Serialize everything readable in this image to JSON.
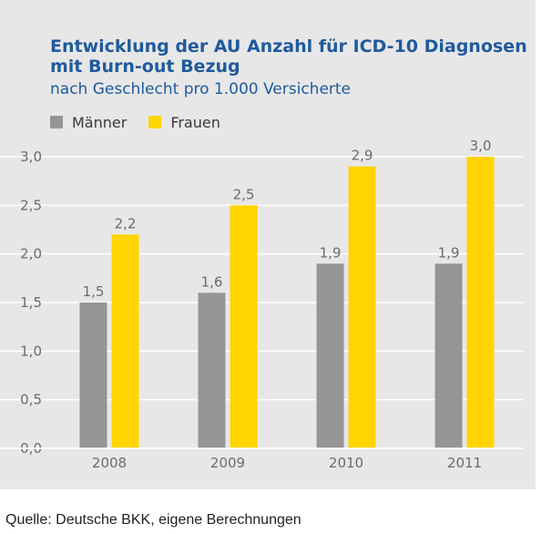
{
  "source": "Quelle: Deutsche BKK, eigene Berechnungen",
  "colors": {
    "panel": "#e7e7e7",
    "title": "#1f5a9e",
    "maenner": "#959595",
    "frauen": "#ffd400",
    "grid": "#ffffff",
    "text": "#6b6b6b"
  },
  "chart_data": {
    "type": "bar",
    "title": "Entwicklung der AU Anzahl für ICD-10 Diagnosen mit Burn-out Bezug",
    "title_lines": [
      "Entwicklung der AU Anzahl für ICD-10 Diagnosen",
      "mit Burn-out Bezug"
    ],
    "subtitle": "nach Geschlecht pro 1.000 Versicherte",
    "xlabel": "",
    "ylabel": "",
    "categories": [
      "2008",
      "2009",
      "2010",
      "2011"
    ],
    "series": [
      {
        "name": "Männer",
        "values": [
          1.5,
          1.6,
          1.9,
          1.9
        ],
        "labels": [
          "1,5",
          "1,6",
          "1,9",
          "1,9"
        ],
        "color": "#959595"
      },
      {
        "name": "Frauen",
        "values": [
          2.2,
          2.5,
          2.9,
          3.0
        ],
        "labels": [
          "2,2",
          "2,5",
          "2,9",
          "3,0"
        ],
        "color": "#ffd400"
      }
    ],
    "ylim": [
      0,
      3.0
    ],
    "yticks": [
      0,
      0.5,
      1.0,
      1.5,
      2.0,
      2.5,
      3.0
    ],
    "ytick_labels": [
      "0,0",
      "0,5",
      "1,0",
      "1,5",
      "2,0",
      "2,5",
      "3,0"
    ],
    "grid": true,
    "legend_position": "top-left"
  }
}
